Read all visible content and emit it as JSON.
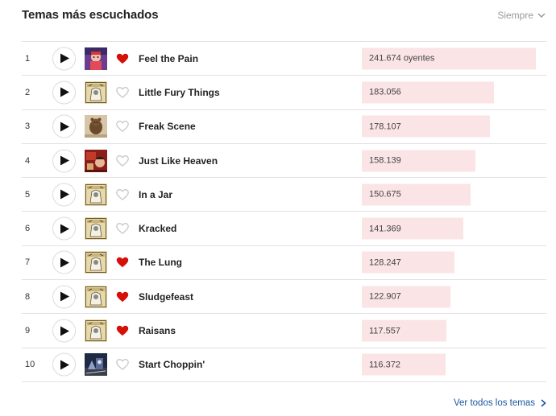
{
  "header": {
    "title": "Temas más escuchados",
    "period": "Siempre"
  },
  "tracks": [
    {
      "rank": "1",
      "name": "Feel the Pain",
      "listeners": "241.674 oyentes",
      "value": 241674,
      "loved": true,
      "art": "art-a"
    },
    {
      "rank": "2",
      "name": "Little Fury Things",
      "listeners": "183.056",
      "value": 183056,
      "loved": false,
      "art": "art-b"
    },
    {
      "rank": "3",
      "name": "Freak Scene",
      "listeners": "178.107",
      "value": 178107,
      "loved": false,
      "art": "art-c"
    },
    {
      "rank": "4",
      "name": "Just Like Heaven",
      "listeners": "158.139",
      "value": 158139,
      "loved": false,
      "art": "art-d"
    },
    {
      "rank": "5",
      "name": "In a Jar",
      "listeners": "150.675",
      "value": 150675,
      "loved": false,
      "art": "art-b"
    },
    {
      "rank": "6",
      "name": "Kracked",
      "listeners": "141.369",
      "value": 141369,
      "loved": false,
      "art": "art-b"
    },
    {
      "rank": "7",
      "name": "The Lung",
      "listeners": "128.247",
      "value": 128247,
      "loved": true,
      "art": "art-b"
    },
    {
      "rank": "8",
      "name": "Sludgefeast",
      "listeners": "122.907",
      "value": 122907,
      "loved": true,
      "art": "art-b"
    },
    {
      "rank": "9",
      "name": "Raisans",
      "listeners": "117.557",
      "value": 117557,
      "loved": true,
      "art": "art-b"
    },
    {
      "rank": "10",
      "name": "Start Choppin'",
      "listeners": "116.372",
      "value": 116372,
      "loved": false,
      "art": "art-e"
    }
  ],
  "footer": {
    "see_all": "Ver todos los temas"
  },
  "colors": {
    "heart_loved": "#d51007",
    "heart_empty": "#c8c8c8",
    "bar": "#fbe4e6",
    "link": "#1a56a0"
  }
}
